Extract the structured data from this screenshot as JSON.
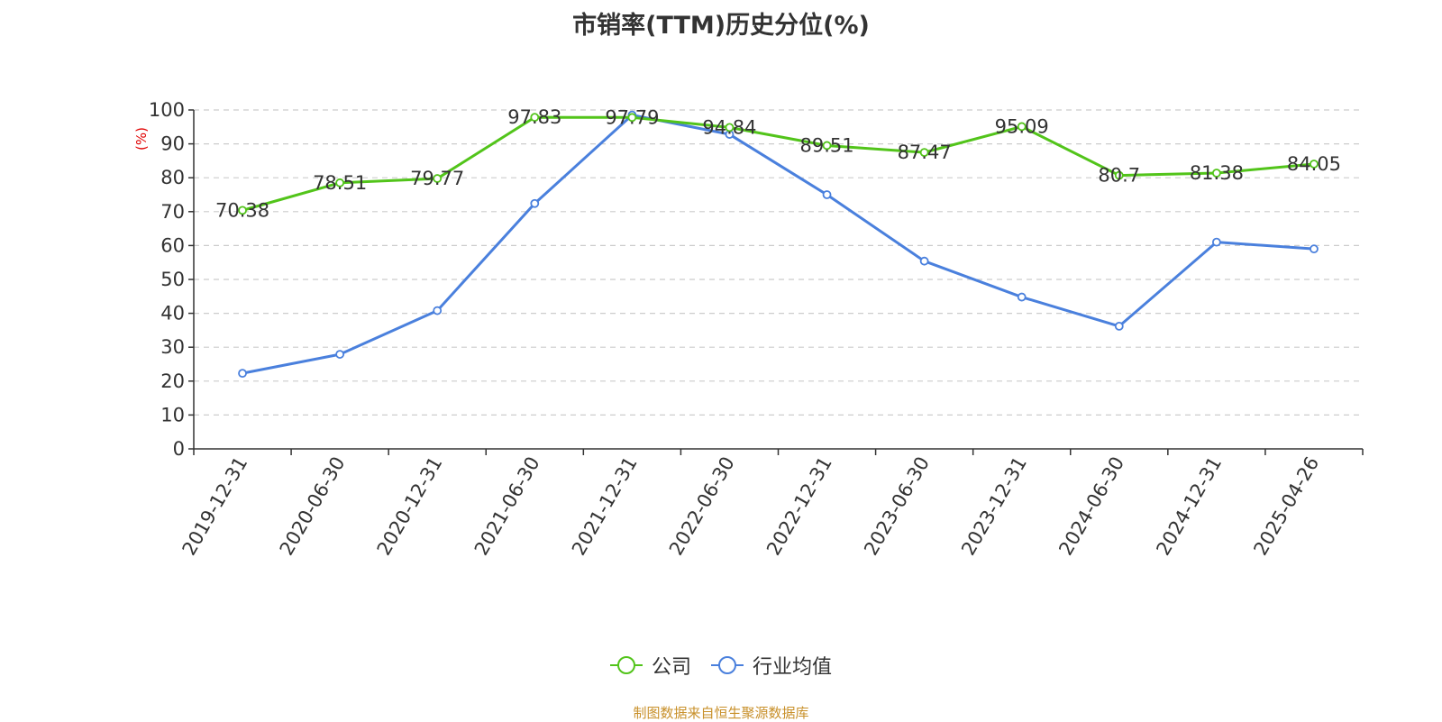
{
  "chart_data": {
    "type": "line",
    "title": "市销率(TTM)历史分位(%)",
    "ylabel": "(%)",
    "categories": [
      "2019-12-31",
      "2020-06-30",
      "2020-12-31",
      "2021-06-30",
      "2021-12-31",
      "2022-06-30",
      "2022-12-31",
      "2023-06-30",
      "2023-12-31",
      "2024-06-30",
      "2024-12-31",
      "2025-04-26"
    ],
    "ylim": [
      0,
      100
    ],
    "yticks": [
      0,
      10,
      20,
      30,
      40,
      50,
      60,
      70,
      80,
      90,
      100
    ],
    "grid": true,
    "legend_position": "bottom",
    "series": [
      {
        "name": "公司",
        "color": "#52c41a",
        "values": [
          70.38,
          78.51,
          79.77,
          97.83,
          97.79,
          94.84,
          89.51,
          87.47,
          95.09,
          80.7,
          81.38,
          84.05
        ],
        "labels": [
          "70.38",
          "78.51",
          "79.77",
          "97.83",
          "97.79",
          "94.84",
          "89.51",
          "87.47",
          "95.09",
          "80.7",
          "81.38",
          "84.05"
        ]
      },
      {
        "name": "行业均值",
        "color": "#4a80dd",
        "values": [
          22.3,
          27.9,
          40.8,
          72.4,
          98.5,
          92.8,
          75.0,
          55.4,
          44.8,
          36.2,
          61.0,
          59.0
        ]
      }
    ]
  },
  "source_text": "制图数据来自恒生聚源数据库"
}
